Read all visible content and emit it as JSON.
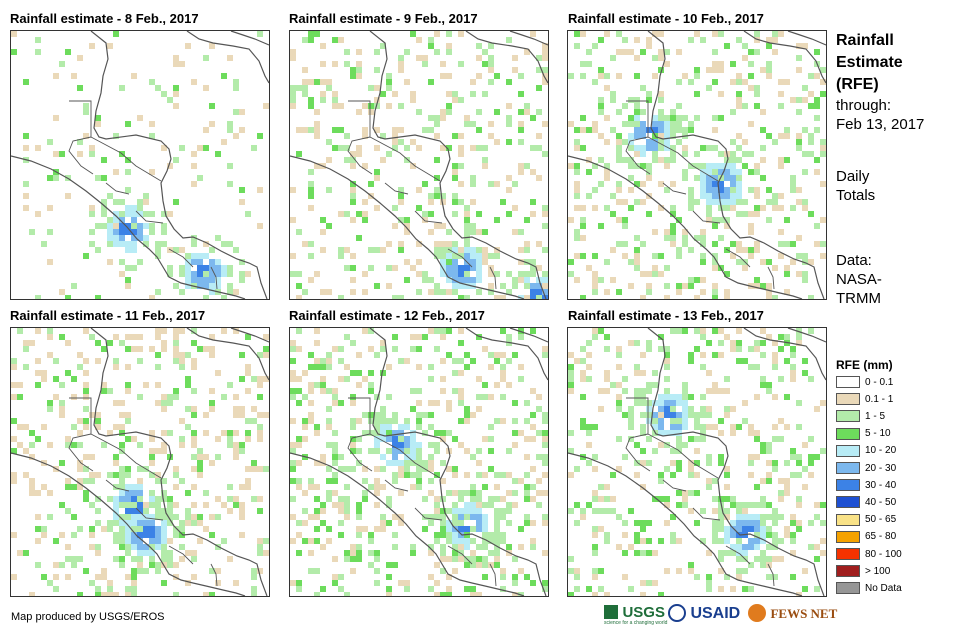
{
  "panels": [
    {
      "title": "Rainfall estimate - 8 Feb., 2017"
    },
    {
      "title": "Rainfall estimate - 9 Feb., 2017"
    },
    {
      "title": "Rainfall estimate - 10 Feb., 2017"
    },
    {
      "title": "Rainfall estimate - 11 Feb., 2017"
    },
    {
      "title": "Rainfall estimate - 12 Feb., 2017"
    },
    {
      "title": "Rainfall estimate - 13 Feb., 2017"
    }
  ],
  "sidebar": {
    "title": [
      "Rainfall",
      "Estimate",
      "(RFE)"
    ],
    "through_label": "through:",
    "through_date": "Feb 13, 2017",
    "period": [
      "Daily",
      "Totals"
    ],
    "data_label": "Data:",
    "data_source": [
      "NASA-",
      "TRMM"
    ]
  },
  "legend": {
    "title": "RFE (mm)",
    "items": [
      {
        "label": "0 - 0.1",
        "color": "#ffffff"
      },
      {
        "label": "0.1 - 1",
        "color": "#ead9b9"
      },
      {
        "label": "1 - 5",
        "color": "#b3ebaa"
      },
      {
        "label": "5 - 10",
        "color": "#6ddc5c"
      },
      {
        "label": "10 - 20",
        "color": "#b8ecf6"
      },
      {
        "label": "20 - 30",
        "color": "#7cb8ee"
      },
      {
        "label": "30 - 40",
        "color": "#3c82e6"
      },
      {
        "label": "40 - 50",
        "color": "#1e50d2"
      },
      {
        "label": "50 - 65",
        "color": "#f9e287"
      },
      {
        "label": "65 - 80",
        "color": "#f5a200"
      },
      {
        "label": "80 - 100",
        "color": "#f53200"
      },
      {
        "label": "> 100",
        "color": "#a01e1e"
      },
      {
        "label": "No Data",
        "color": "#969696"
      }
    ]
  },
  "footer": {
    "credit": "Map produced by USGS/EROS",
    "logos": [
      "USGS",
      "USAID",
      "FEWS NET"
    ],
    "usgs_tagline": "science for a changing world"
  }
}
